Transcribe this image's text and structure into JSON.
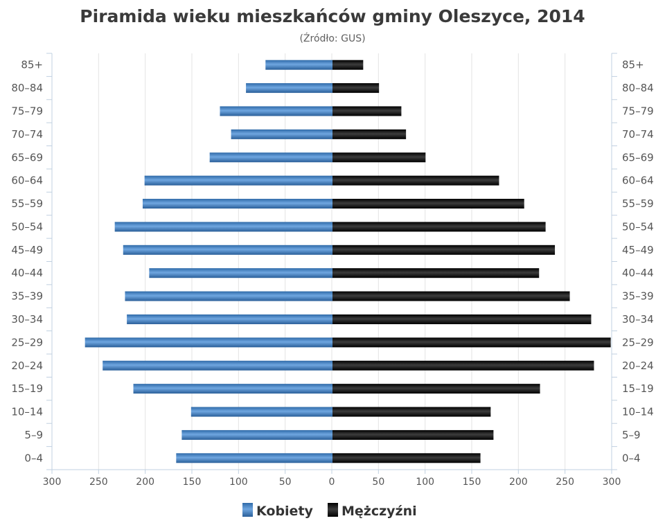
{
  "chart_data": {
    "type": "bar",
    "orientation": "horizontal-population-pyramid",
    "title": "Piramida wieku mieszkańców gminy Oleszyce, 2014",
    "subtitle": "(Źródło: GUS)",
    "categories": [
      "85+",
      "80–84",
      "75–79",
      "70–74",
      "65–69",
      "60–64",
      "55–59",
      "50–54",
      "45–49",
      "40–44",
      "35–39",
      "30–34",
      "25–29",
      "20–24",
      "15–19",
      "10–14",
      "5–9",
      "0–4"
    ],
    "series": [
      {
        "name": "Kobiety",
        "color": "#3f7fc2",
        "values": [
          72,
          93,
          121,
          109,
          132,
          202,
          204,
          234,
          225,
          197,
          223,
          221,
          266,
          247,
          214,
          152,
          162,
          168
        ]
      },
      {
        "name": "Mężczyźni",
        "color": "#111111",
        "values": [
          33,
          50,
          74,
          79,
          100,
          179,
          206,
          229,
          239,
          222,
          255,
          278,
          299,
          281,
          223,
          170,
          173,
          159
        ]
      }
    ],
    "x_tick_labels": [
      "300",
      "250",
      "200",
      "150",
      "100",
      "50",
      "0",
      "50",
      "100",
      "150",
      "200",
      "250",
      "300"
    ],
    "xlim": [
      -300,
      300
    ],
    "grid": true,
    "legend_position": "bottom-center"
  }
}
